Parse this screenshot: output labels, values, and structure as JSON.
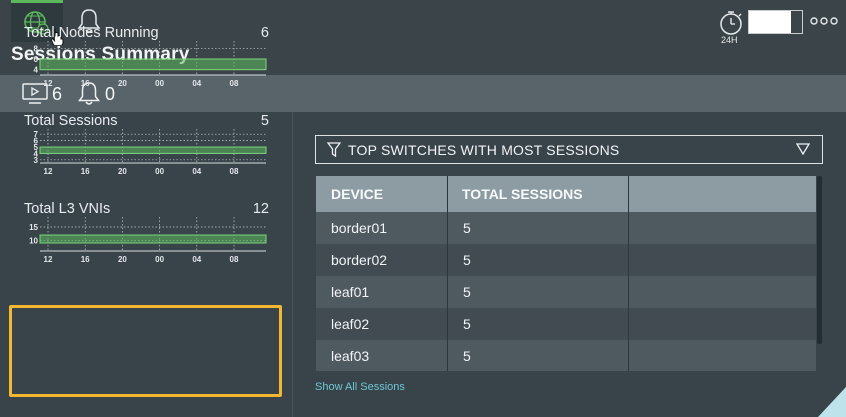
{
  "header": {
    "title": "Sessions Summary",
    "tabs": [
      {
        "name": "network",
        "icon": "globe-info-icon"
      },
      {
        "name": "alarms",
        "icon": "bell-icon"
      }
    ],
    "time_range_label": "24H",
    "time_icon": "stopwatch-icon",
    "more_icon": "ellipsis-icon"
  },
  "stats": {
    "sessions_count": "6",
    "alarms_count": "0"
  },
  "metrics": [
    {
      "label": "Total Nodes Running",
      "value": "6",
      "ticks": [
        "8",
        "6",
        "4"
      ],
      "tick_values": [
        8,
        6,
        4
      ],
      "ylim": [
        3,
        9
      ],
      "fill_range": [
        4,
        6
      ]
    },
    {
      "label": "Total Sessions",
      "value": "5",
      "ticks": [
        "7",
        "6",
        "5",
        "4",
        "3"
      ],
      "tick_values": [
        7,
        6,
        5,
        4,
        3
      ],
      "ylim": [
        2.5,
        7.5
      ],
      "fill_range": [
        4,
        5
      ]
    },
    {
      "label": "Total L3 VNIs",
      "value": "12",
      "ticks": [
        "15",
        "10"
      ],
      "tick_values": [
        15,
        10
      ],
      "ylim": [
        6,
        18
      ],
      "fill_range": [
        9,
        12
      ]
    }
  ],
  "x_ticks": [
    "12",
    "16",
    "20",
    "00",
    "04",
    "08"
  ],
  "filter": {
    "label": "TOP SWITCHES WITH MOST SESSIONS"
  },
  "table": {
    "columns": [
      "DEVICE",
      "TOTAL SESSIONS"
    ],
    "rows": [
      {
        "device": "border01",
        "sessions": "5"
      },
      {
        "device": "border02",
        "sessions": "5"
      },
      {
        "device": "leaf01",
        "sessions": "5"
      },
      {
        "device": "leaf02",
        "sessions": "5"
      },
      {
        "device": "leaf03",
        "sessions": "5"
      }
    ]
  },
  "footer": {
    "show_all_label": "Show All Sessions"
  },
  "colors": {
    "accent_green": "#5cb85c",
    "highlight": "#f5b731",
    "link": "#6fc6d2"
  }
}
